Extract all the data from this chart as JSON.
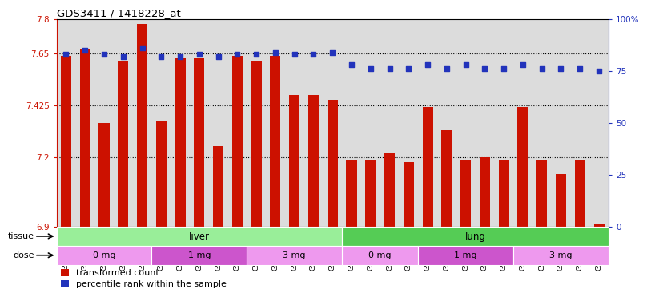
{
  "title": "GDS3411 / 1418228_at",
  "samples": [
    "GSM326974",
    "GSM326976",
    "GSM326978",
    "GSM326980",
    "GSM326982",
    "GSM326983",
    "GSM326985",
    "GSM326987",
    "GSM326989",
    "GSM326991",
    "GSM326993",
    "GSM326995",
    "GSM326997",
    "GSM326999",
    "GSM327001",
    "GSM326973",
    "GSM326975",
    "GSM326977",
    "GSM326979",
    "GSM326981",
    "GSM326984",
    "GSM326986",
    "GSM326988",
    "GSM326990",
    "GSM326992",
    "GSM326994",
    "GSM326996",
    "GSM326998",
    "GSM327000"
  ],
  "bar_values": [
    7.64,
    7.67,
    7.35,
    7.62,
    7.78,
    7.36,
    7.63,
    7.63,
    7.25,
    7.64,
    7.62,
    7.64,
    7.47,
    7.47,
    7.45,
    7.19,
    7.19,
    7.22,
    7.18,
    7.42,
    7.32,
    7.19,
    7.2,
    7.19,
    7.42,
    7.19,
    7.13,
    7.19,
    6.91
  ],
  "percentile_values": [
    83,
    85,
    83,
    82,
    86,
    82,
    82,
    83,
    82,
    83,
    83,
    84,
    83,
    83,
    84,
    78,
    76,
    76,
    76,
    78,
    76,
    78,
    76,
    76,
    78,
    76,
    76,
    76,
    75
  ],
  "ylim_left": [
    6.9,
    7.8
  ],
  "ylim_right": [
    0,
    100
  ],
  "yticks_left": [
    6.9,
    7.2,
    7.425,
    7.65,
    7.8
  ],
  "ytick_labels_left": [
    "6.9",
    "7.2",
    "7.425",
    "7.65",
    "7.8"
  ],
  "yticks_right": [
    0,
    25,
    50,
    75,
    100
  ],
  "ytick_labels_right": [
    "0",
    "25",
    "50",
    "75",
    "100%"
  ],
  "bar_color": "#CC1100",
  "dot_color": "#2233BB",
  "tissue_groups": [
    {
      "label": "liver",
      "start": 0,
      "end": 15,
      "color": "#99EE99"
    },
    {
      "label": "lung",
      "start": 15,
      "end": 29,
      "color": "#55CC55"
    }
  ],
  "dose_groups": [
    {
      "label": "0 mg",
      "start": 0,
      "end": 5,
      "color": "#EE99EE"
    },
    {
      "label": "1 mg",
      "start": 5,
      "end": 10,
      "color": "#CC55CC"
    },
    {
      "label": "3 mg",
      "start": 10,
      "end": 15,
      "color": "#EE99EE"
    },
    {
      "label": "0 mg",
      "start": 15,
      "end": 19,
      "color": "#EE99EE"
    },
    {
      "label": "1 mg",
      "start": 19,
      "end": 24,
      "color": "#CC55CC"
    },
    {
      "label": "3 mg",
      "start": 24,
      "end": 29,
      "color": "#EE99EE"
    }
  ],
  "legend_items": [
    {
      "label": "transformed count",
      "color": "#CC1100"
    },
    {
      "label": "percentile rank within the sample",
      "color": "#2233BB"
    }
  ],
  "tissue_label": "tissue",
  "dose_label": "dose",
  "bg_color": "#DCDCDC"
}
